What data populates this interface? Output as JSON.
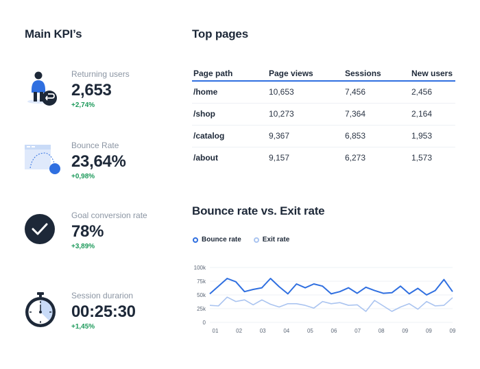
{
  "kpis": {
    "title": "Main KPI’s",
    "items": [
      {
        "label": "Returning users",
        "value": "2,653",
        "delta": "+2,74%",
        "icon": "returning-user-icon"
      },
      {
        "label": "Bounce Rate",
        "value": "23,64%",
        "delta": "+0,98%",
        "icon": "bounce-page-icon"
      },
      {
        "label": "Goal conversion rate",
        "value": "78%",
        "delta": "+3,89%",
        "icon": "checkmark-circle-icon"
      },
      {
        "label": "Session durarion",
        "value": "00:25:30",
        "delta": "+1,45%",
        "icon": "stopwatch-icon"
      }
    ]
  },
  "top_pages": {
    "title": "Top pages",
    "columns": [
      "Page path",
      "Page views",
      "Sessions",
      "New users"
    ],
    "rows": [
      [
        "/home",
        "10,653",
        "7,456",
        "2,456"
      ],
      [
        "/shop",
        "10,273",
        "7,364",
        "2,164"
      ],
      [
        "/catalog",
        "9,367",
        "6,853",
        "1,953"
      ],
      [
        "/about",
        "9,157",
        "6,273",
        "1,573"
      ]
    ]
  },
  "colors": {
    "accent": "#2f6fe0",
    "bounce_line": "#2f6fe0",
    "exit_line": "#aac4f0",
    "positive": "#1d9a5b",
    "dark": "#1d2838"
  },
  "chart_data": {
    "type": "line",
    "title": "Bounce rate vs. Exit rate",
    "xlabel": "",
    "ylabel": "",
    "x_ticks": [
      "01",
      "02",
      "03",
      "04",
      "05",
      "06",
      "07",
      "08",
      "09",
      "09",
      "09"
    ],
    "y_ticks": [
      "0",
      "25k",
      "50k",
      "75k",
      "100k"
    ],
    "ylim": [
      0,
      100000
    ],
    "grid": true,
    "legend": "top-left",
    "series": [
      {
        "name": "Bounce rate",
        "color": "#2f6fe0",
        "values": [
          52000,
          66000,
          80000,
          74000,
          56000,
          60000,
          63000,
          80000,
          65000,
          52000,
          70000,
          63000,
          70000,
          66000,
          52000,
          56000,
          63000,
          53000,
          64000,
          58000,
          53000,
          54000,
          66000,
          52000,
          62000,
          50000,
          58000,
          78000,
          56000
        ]
      },
      {
        "name": "Exit rate",
        "color": "#aac4f0",
        "values": [
          31000,
          30000,
          46000,
          38000,
          41000,
          32000,
          41000,
          33000,
          28000,
          34000,
          34000,
          31000,
          26000,
          38000,
          34000,
          36000,
          31000,
          32000,
          20000,
          40000,
          30000,
          20000,
          28000,
          34000,
          24000,
          38000,
          30000,
          31000,
          45000
        ]
      }
    ]
  }
}
